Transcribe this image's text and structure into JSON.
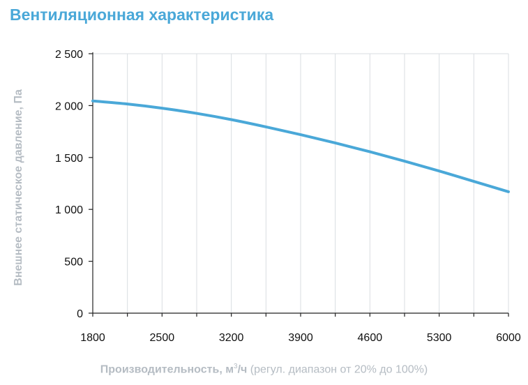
{
  "chart_data": {
    "type": "line",
    "title": "Вентиляционная характеристика",
    "xlabel": {
      "main": "Производительность, м",
      "sup": "3",
      "unit": "/ч",
      "note": " (регул. диапазон от 20% до 100%)"
    },
    "ylabel": "Внешнее статическое давление, Па",
    "xlim": [
      1800,
      6000
    ],
    "ylim": [
      0,
      2500
    ],
    "x_ticks": [
      "1800",
      "2500",
      "3200",
      "3900",
      "4600",
      "5300",
      "6000"
    ],
    "x_tick_values": [
      1800,
      2500,
      3200,
      3900,
      4600,
      5300,
      6000
    ],
    "y_ticks": [
      "0",
      "500",
      "1 000",
      "1 500",
      "2 000",
      "2 500"
    ],
    "y_tick_values": [
      0,
      500,
      1000,
      1500,
      2000,
      2500
    ],
    "x_minor_step": 350,
    "grid": true,
    "series": [
      {
        "color": "#4aa8d8",
        "x": [
          1800,
          2150,
          2500,
          2850,
          3200,
          3550,
          3900,
          4250,
          4600,
          4950,
          5300,
          5650,
          6000
        ],
        "y": [
          2045,
          2015,
          1975,
          1925,
          1865,
          1795,
          1720,
          1640,
          1555,
          1465,
          1370,
          1270,
          1170
        ]
      }
    ]
  }
}
